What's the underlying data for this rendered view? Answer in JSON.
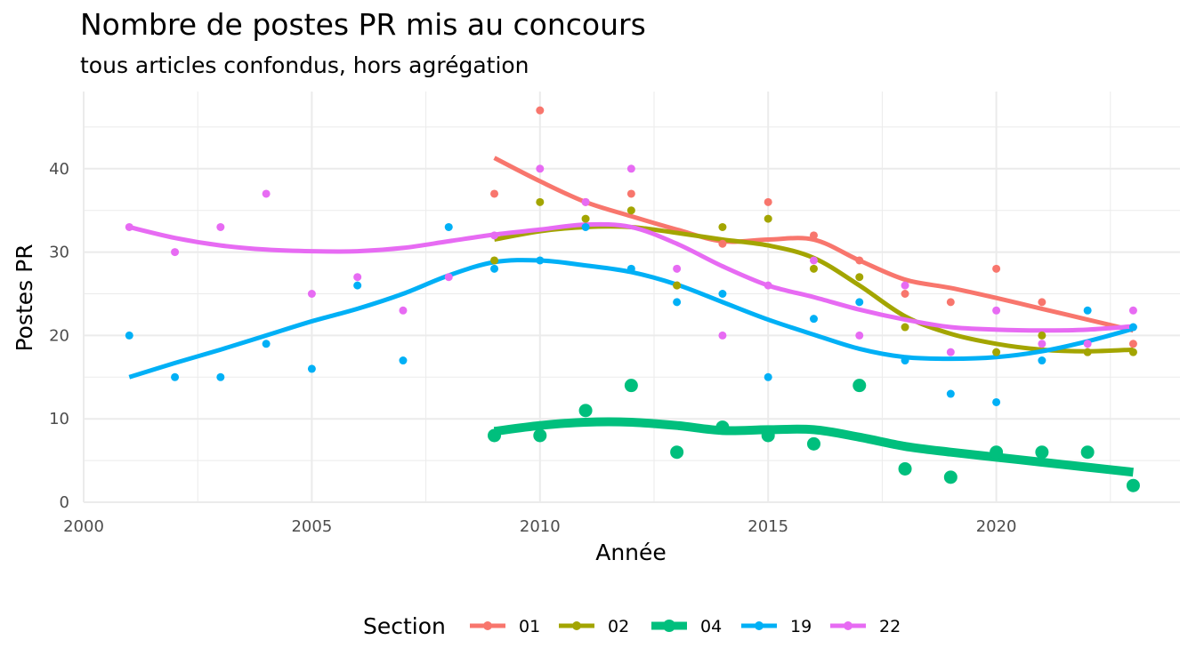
{
  "chart_data": {
    "type": "scatter",
    "title": "Nombre de postes PR mis au concours",
    "subtitle": "tous articles confondus, hors agrégation",
    "xlabel": "Année",
    "ylabel": "Postes PR",
    "xlim": [
      2000,
      2024
    ],
    "ylim": [
      0,
      48
    ],
    "x_ticks": [
      2000,
      2005,
      2010,
      2015,
      2020
    ],
    "y_ticks": [
      0,
      10,
      20,
      30,
      40
    ],
    "grid": true,
    "legend": {
      "title": "Section",
      "position": "bottom"
    },
    "series": [
      {
        "name": "01",
        "color": "#F8766D",
        "points": [
          [
            2009,
            37
          ],
          [
            2010,
            47
          ],
          [
            2011,
            36
          ],
          [
            2012,
            37
          ],
          [
            2013,
            26
          ],
          [
            2014,
            31
          ],
          [
            2015,
            36
          ],
          [
            2016,
            32
          ],
          [
            2017,
            29
          ],
          [
            2018,
            25
          ],
          [
            2019,
            24
          ],
          [
            2020,
            28
          ],
          [
            2021,
            24
          ],
          [
            2022,
            18
          ],
          [
            2023,
            19
          ]
        ],
        "smooth": [
          [
            2009,
            41.3
          ],
          [
            2010,
            38.5
          ],
          [
            2011,
            36
          ],
          [
            2012,
            34.3
          ],
          [
            2013,
            32.7
          ],
          [
            2014,
            31.3
          ],
          [
            2015,
            31.5
          ],
          [
            2016,
            31.5
          ],
          [
            2017,
            29
          ],
          [
            2018,
            26.7
          ],
          [
            2019,
            25.7
          ],
          [
            2020,
            24.5
          ],
          [
            2021,
            23.2
          ],
          [
            2022,
            21.9
          ],
          [
            2023,
            20.6
          ]
        ]
      },
      {
        "name": "02",
        "color": "#A3A500",
        "points": [
          [
            2009,
            29
          ],
          [
            2010,
            36
          ],
          [
            2011,
            34
          ],
          [
            2012,
            35
          ],
          [
            2013,
            26
          ],
          [
            2014,
            33
          ],
          [
            2015,
            34
          ],
          [
            2016,
            28
          ],
          [
            2017,
            27
          ],
          [
            2018,
            21
          ],
          [
            2019,
            null
          ],
          [
            2020,
            18
          ],
          [
            2021,
            20
          ],
          [
            2022,
            18
          ],
          [
            2023,
            18
          ]
        ],
        "smooth": [
          [
            2009,
            31.5
          ],
          [
            2010,
            32.5
          ],
          [
            2011,
            33
          ],
          [
            2012,
            33
          ],
          [
            2013,
            32.3
          ],
          [
            2014,
            31.5
          ],
          [
            2015,
            30.8
          ],
          [
            2016,
            29.3
          ],
          [
            2017,
            26
          ],
          [
            2018,
            22.3
          ],
          [
            2019,
            20.2
          ],
          [
            2020,
            19
          ],
          [
            2021,
            18.3
          ],
          [
            2022,
            18.1
          ],
          [
            2023,
            18.3
          ]
        ]
      },
      {
        "name": "04",
        "color": "#00BF7D",
        "points": [
          [
            2009,
            8
          ],
          [
            2010,
            8
          ],
          [
            2011,
            11
          ],
          [
            2012,
            14
          ],
          [
            2013,
            6
          ],
          [
            2014,
            9
          ],
          [
            2015,
            8
          ],
          [
            2016,
            7
          ],
          [
            2017,
            14
          ],
          [
            2018,
            4
          ],
          [
            2019,
            3
          ],
          [
            2020,
            6
          ],
          [
            2021,
            6
          ],
          [
            2022,
            6
          ],
          [
            2023,
            2
          ]
        ],
        "smooth": [
          [
            2009,
            8.5
          ],
          [
            2010,
            9.2
          ],
          [
            2011,
            9.6
          ],
          [
            2012,
            9.6
          ],
          [
            2013,
            9.2
          ],
          [
            2014,
            8.6
          ],
          [
            2015,
            8.7
          ],
          [
            2016,
            8.7
          ],
          [
            2017,
            7.8
          ],
          [
            2018,
            6.7
          ],
          [
            2019,
            6
          ],
          [
            2020,
            5.4
          ],
          [
            2021,
            4.8
          ],
          [
            2022,
            4.2
          ],
          [
            2023,
            3.6
          ]
        ]
      },
      {
        "name": "19",
        "color": "#00B0F6",
        "points": [
          [
            2001,
            20
          ],
          [
            2002,
            15
          ],
          [
            2003,
            15
          ],
          [
            2004,
            19
          ],
          [
            2005,
            16
          ],
          [
            2006,
            26
          ],
          [
            2007,
            17
          ],
          [
            2008,
            33
          ],
          [
            2009,
            28
          ],
          [
            2010,
            29
          ],
          [
            2011,
            33
          ],
          [
            2012,
            28
          ],
          [
            2013,
            24
          ],
          [
            2014,
            25
          ],
          [
            2015,
            15
          ],
          [
            2016,
            22
          ],
          [
            2017,
            24
          ],
          [
            2018,
            17
          ],
          [
            2019,
            13
          ],
          [
            2020,
            12
          ],
          [
            2021,
            17
          ],
          [
            2022,
            23
          ],
          [
            2023,
            21
          ]
        ],
        "smooth": [
          [
            2001,
            15
          ],
          [
            2002,
            16.7
          ],
          [
            2003,
            18.3
          ],
          [
            2004,
            20
          ],
          [
            2005,
            21.7
          ],
          [
            2006,
            23.2
          ],
          [
            2007,
            25
          ],
          [
            2008,
            27.2
          ],
          [
            2009,
            28.8
          ],
          [
            2010,
            29
          ],
          [
            2011,
            28.4
          ],
          [
            2012,
            27.6
          ],
          [
            2013,
            26.1
          ],
          [
            2014,
            24
          ],
          [
            2015,
            21.9
          ],
          [
            2016,
            20.1
          ],
          [
            2017,
            18.4
          ],
          [
            2018,
            17.4
          ],
          [
            2019,
            17.2
          ],
          [
            2020,
            17.4
          ],
          [
            2021,
            18.1
          ],
          [
            2022,
            19.3
          ],
          [
            2023,
            20.8
          ]
        ]
      },
      {
        "name": "22",
        "color": "#E76BF3",
        "points": [
          [
            2001,
            33
          ],
          [
            2002,
            30
          ],
          [
            2003,
            33
          ],
          [
            2004,
            37
          ],
          [
            2005,
            25
          ],
          [
            2006,
            27
          ],
          [
            2007,
            23
          ],
          [
            2008,
            27
          ],
          [
            2009,
            32
          ],
          [
            2010,
            40
          ],
          [
            2011,
            36
          ],
          [
            2012,
            40
          ],
          [
            2013,
            28
          ],
          [
            2014,
            20
          ],
          [
            2015,
            26
          ],
          [
            2016,
            29
          ],
          [
            2017,
            20
          ],
          [
            2018,
            26
          ],
          [
            2019,
            18
          ],
          [
            2020,
            23
          ],
          [
            2021,
            19
          ],
          [
            2022,
            19
          ],
          [
            2023,
            23
          ]
        ],
        "smooth": [
          [
            2001,
            33
          ],
          [
            2002,
            31.7
          ],
          [
            2003,
            30.8
          ],
          [
            2004,
            30.3
          ],
          [
            2005,
            30.1
          ],
          [
            2006,
            30.1
          ],
          [
            2007,
            30.5
          ],
          [
            2008,
            31.3
          ],
          [
            2009,
            32.1
          ],
          [
            2010,
            32.7
          ],
          [
            2011,
            33.3
          ],
          [
            2012,
            33
          ],
          [
            2013,
            31
          ],
          [
            2014,
            28.3
          ],
          [
            2015,
            26
          ],
          [
            2016,
            24.6
          ],
          [
            2017,
            23.1
          ],
          [
            2018,
            21.9
          ],
          [
            2019,
            21
          ],
          [
            2020,
            20.7
          ],
          [
            2021,
            20.6
          ],
          [
            2022,
            20.7
          ],
          [
            2023,
            21.1
          ]
        ]
      }
    ]
  }
}
